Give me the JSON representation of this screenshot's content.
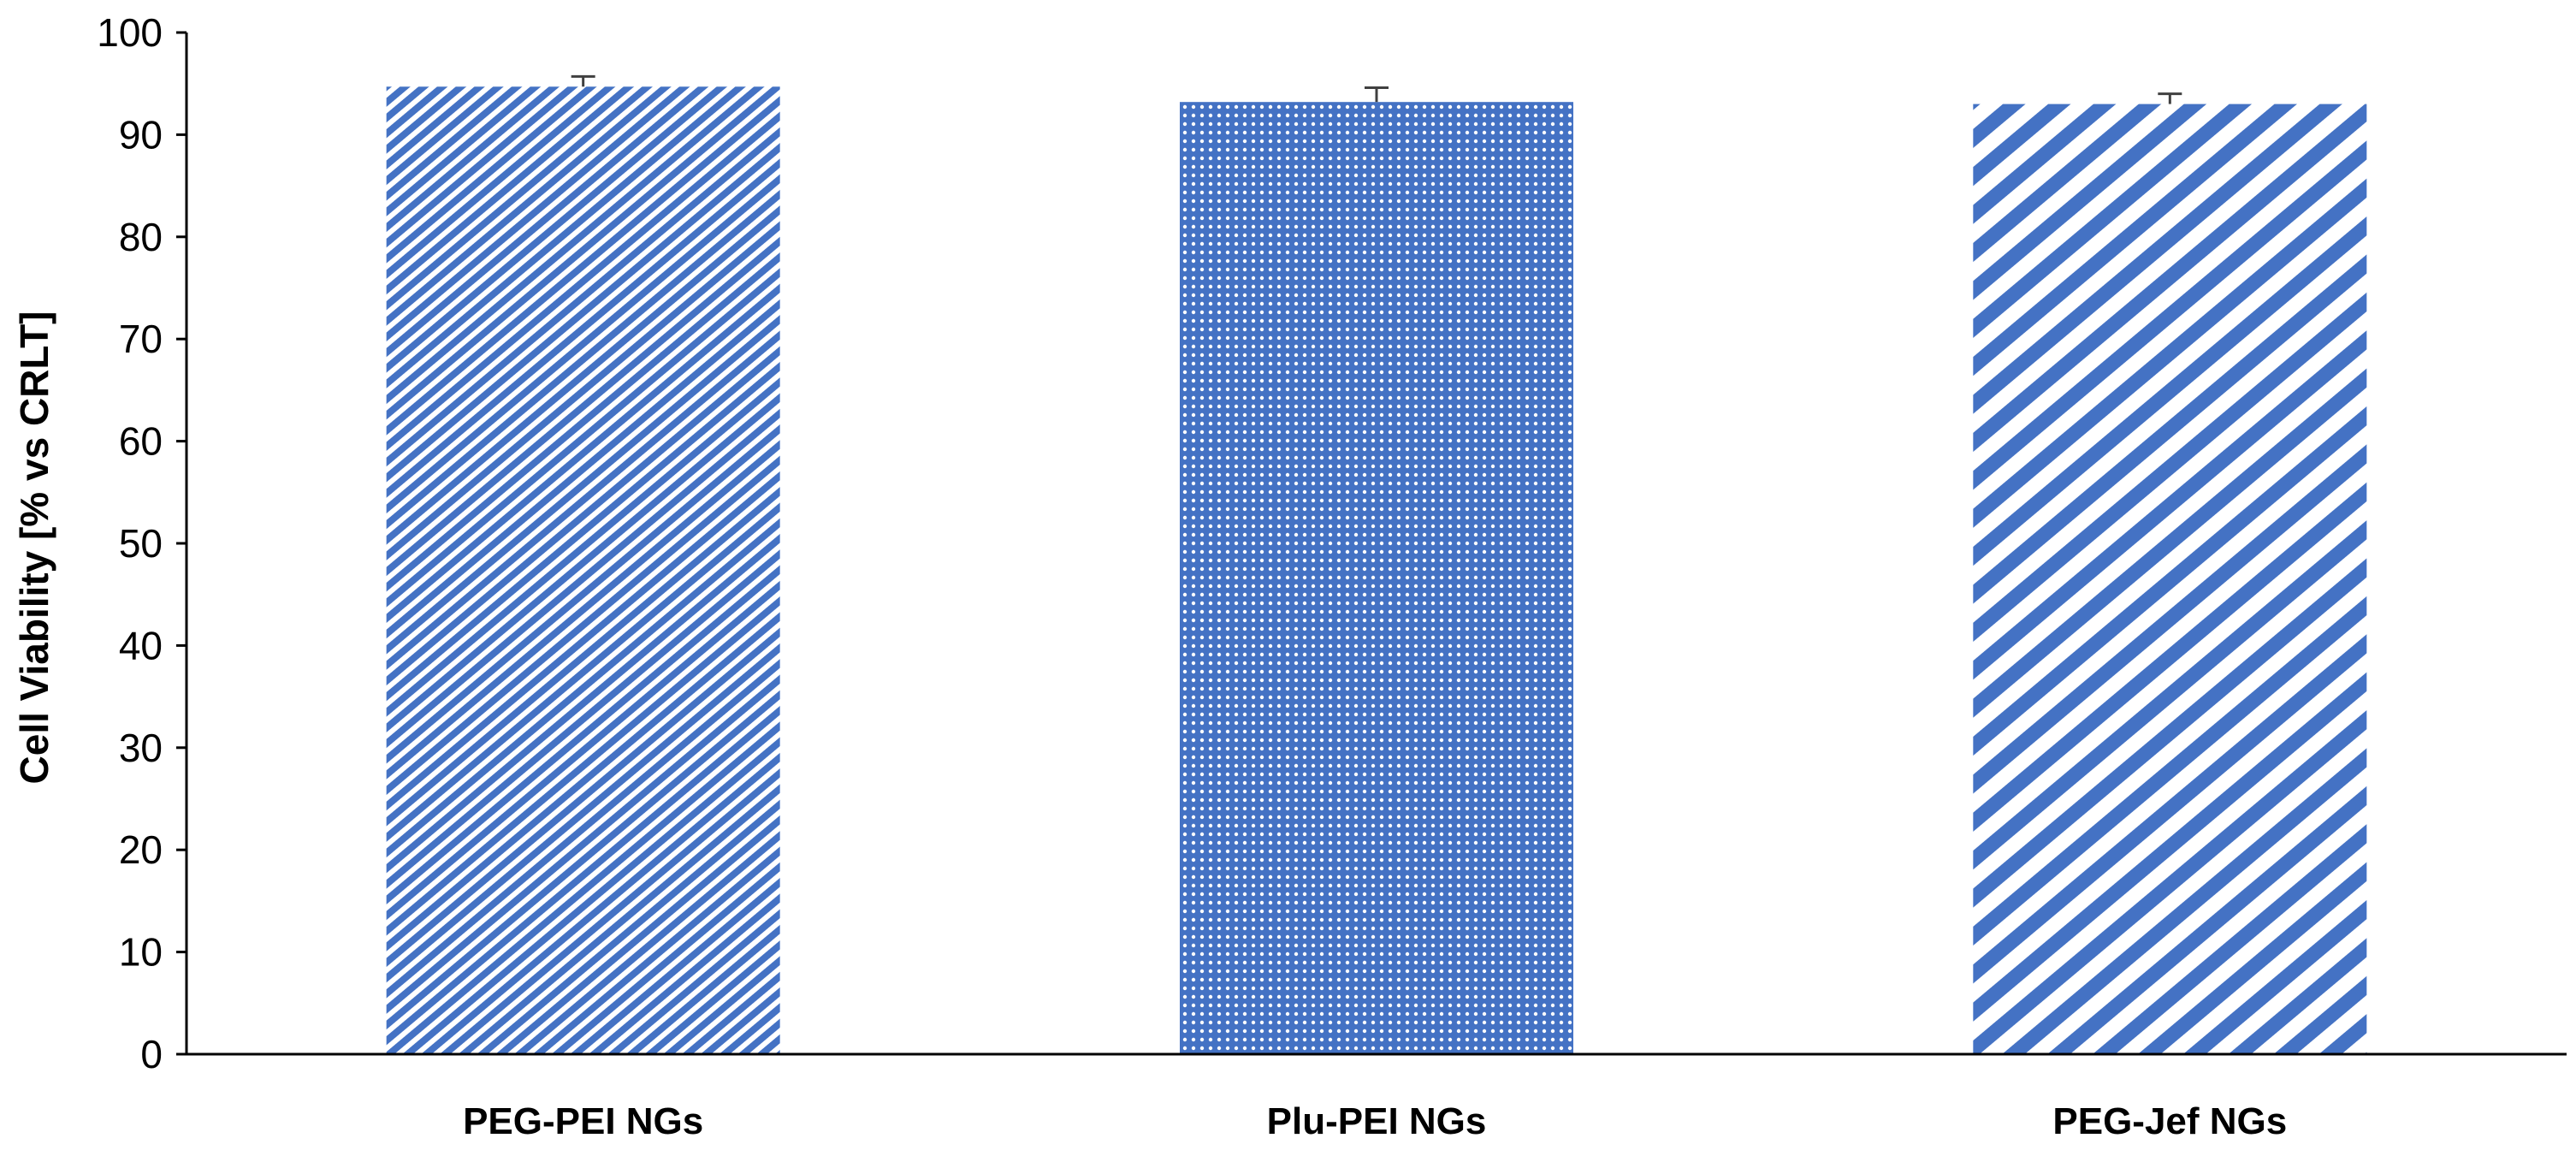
{
  "chart_data": {
    "type": "bar",
    "title": "",
    "xlabel": "",
    "ylabel": "Cell Viability [% vs CRLT]",
    "ylim": [
      0,
      100
    ],
    "yticks": [
      0,
      10,
      20,
      30,
      40,
      50,
      60,
      70,
      80,
      90,
      100
    ],
    "categories": [
      "PEG-PEI NGs",
      "Plu-PEI NGs",
      "PEG-Jef NGs"
    ],
    "values": [
      94.7,
      93.2,
      93.0
    ],
    "errors": [
      1.0,
      1.4,
      1.0
    ],
    "patterns": [
      "fine-diagonal-stripes",
      "dots",
      "wide-diagonal-stripes"
    ],
    "grid": false,
    "legend": "none",
    "colors": {
      "bar": "#4472C4",
      "axis": "#000000",
      "error_bar": "#404040"
    }
  }
}
